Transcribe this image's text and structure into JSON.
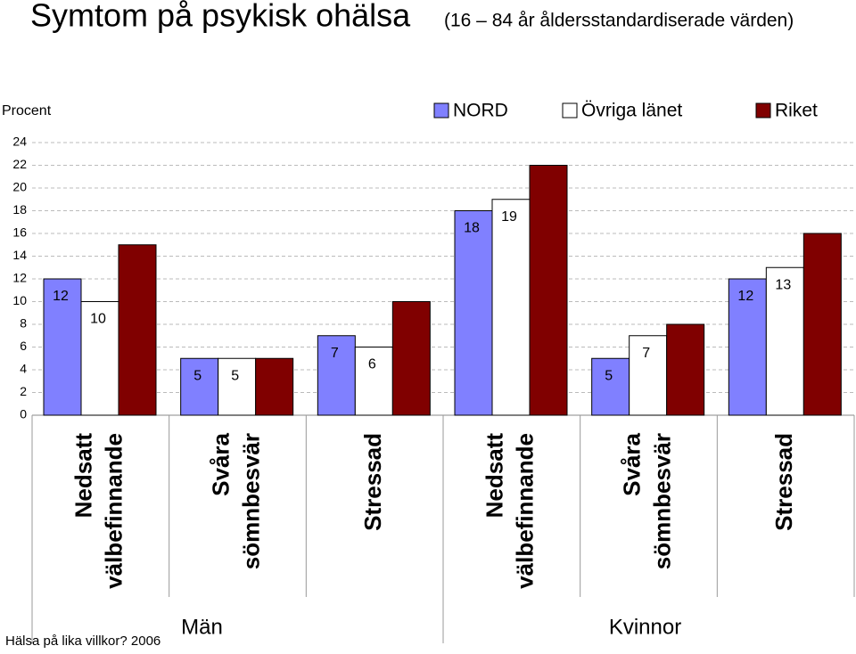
{
  "chart_data": {
    "type": "bar",
    "title": "Symtom på psykisk ohälsa",
    "subtitle": "(16 – 84 år åldersstandardiserade värden)",
    "y_label": "Procent",
    "source": "Hälsa på lika villkor? 2006",
    "categories": [
      [
        "Nedsatt",
        "välbefinnande"
      ],
      [
        "Svåra",
        "sömnbesvär"
      ],
      [
        "Stressad"
      ],
      [
        "Nedsatt",
        "välbefinnande"
      ],
      [
        "Svåra",
        "sömnbesvär"
      ],
      [
        "Stressad"
      ]
    ],
    "groups": [
      "Män",
      "Kvinnor"
    ],
    "series": [
      {
        "name": "NORD",
        "color": "#8080ff",
        "values": [
          12,
          5,
          7,
          18,
          5,
          12
        ],
        "labels_shown": true
      },
      {
        "name": "Övriga länet",
        "color": "#ffffff",
        "values": [
          10,
          5,
          6,
          19,
          7,
          13
        ],
        "labels_shown": true
      },
      {
        "name": "Riket",
        "color": "#800000",
        "values": [
          15,
          5,
          10,
          22,
          8,
          16
        ],
        "labels_shown": false
      }
    ],
    "ylim": [
      0,
      24
    ],
    "yticks": [
      0,
      2,
      4,
      6,
      8,
      10,
      12,
      14,
      16,
      18,
      20,
      22,
      24
    ],
    "grid": true
  }
}
